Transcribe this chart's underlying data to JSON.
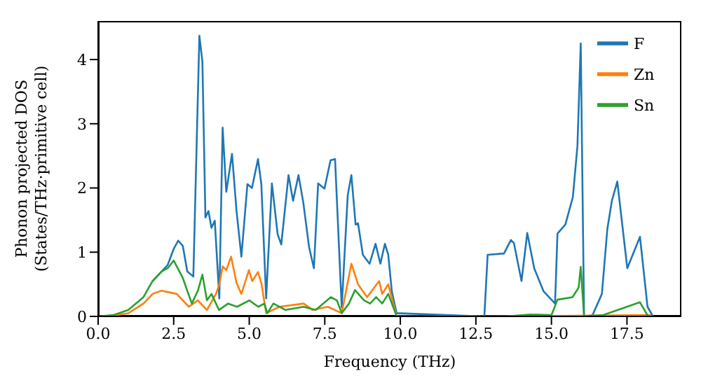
{
  "chart_data": {
    "type": "line",
    "xlabel": "Frequency (THz)",
    "ylabel": "Phonon projected DOS\n(States/THz·primitive cell)",
    "xlim": [
      0,
      19.3
    ],
    "ylim": [
      0,
      4.6
    ],
    "xticks": [
      {
        "value": 0,
        "label": "0.0"
      },
      {
        "value": 2.5,
        "label": "2.5"
      },
      {
        "value": 5,
        "label": "5.0"
      },
      {
        "value": 7.5,
        "label": "7.5"
      },
      {
        "value": 10,
        "label": "10.0"
      },
      {
        "value": 12.5,
        "label": "12.5"
      },
      {
        "value": 15,
        "label": "15.0"
      },
      {
        "value": 17.5,
        "label": "17.5"
      }
    ],
    "yticks": [
      0,
      1,
      2,
      3,
      4
    ],
    "legend": "top right",
    "line_style": "solid",
    "series": [
      {
        "name": "F",
        "color": "#1f77b4",
        "x": [
          1.8,
          2.1,
          2.3,
          2.5,
          2.65,
          2.8,
          2.95,
          3.15,
          3.35,
          3.45,
          3.55,
          3.65,
          3.75,
          3.86,
          4.01,
          4.12,
          4.24,
          4.43,
          4.58,
          4.74,
          4.94,
          5.09,
          5.29,
          5.4,
          5.56,
          5.75,
          5.94,
          6.06,
          6.3,
          6.45,
          6.63,
          6.79,
          6.98,
          7.14,
          7.28,
          7.49,
          7.69,
          7.84,
          8.06,
          8.26,
          8.38,
          8.52,
          8.6,
          8.76,
          8.98,
          9.18,
          9.34,
          9.49,
          9.6,
          9.72,
          9.88,
          12.78,
          12.89,
          13.43,
          13.66,
          13.76,
          14.01,
          14.2,
          14.43,
          14.74,
          15.12,
          15.2,
          15.46,
          15.71,
          15.86,
          15.97,
          16.08,
          16.36,
          16.67,
          16.85,
          17.0,
          17.18,
          17.51,
          17.93,
          18.18,
          18.36
        ],
        "values": [
          0.55,
          0.7,
          0.8,
          1.05,
          1.18,
          1.1,
          0.7,
          0.62,
          4.37,
          3.97,
          1.54,
          1.64,
          1.38,
          1.49,
          0.28,
          2.94,
          1.94,
          2.53,
          1.64,
          0.93,
          2.06,
          2.0,
          2.45,
          2.06,
          0.28,
          2.07,
          1.28,
          1.12,
          2.2,
          1.8,
          2.2,
          1.77,
          1.08,
          0.75,
          2.07,
          1.99,
          2.43,
          2.45,
          0.14,
          1.89,
          2.2,
          1.43,
          1.45,
          0.96,
          0.82,
          1.13,
          0.82,
          1.13,
          0.96,
          0.38,
          0.05,
          0,
          0.96,
          0.98,
          1.19,
          1.14,
          0.55,
          1.3,
          0.75,
          0.39,
          0.2,
          1.29,
          1.43,
          1.86,
          2.65,
          4.25,
          0,
          0.02,
          0.35,
          1.36,
          1.8,
          2.1,
          0.75,
          1.24,
          0.15,
          0
        ]
      },
      {
        "name": "Zn",
        "color": "#ff7f0e",
        "x": [
          0.3,
          1.0,
          1.5,
          1.8,
          2.1,
          2.3,
          2.6,
          3.0,
          3.3,
          3.6,
          3.9,
          4.01,
          4.12,
          4.24,
          4.4,
          4.58,
          4.74,
          4.99,
          5.1,
          5.29,
          5.4,
          5.56,
          6.0,
          6.8,
          7.1,
          7.6,
          8.06,
          8.38,
          8.6,
          8.9,
          9.3,
          9.4,
          9.6,
          9.88,
          13.0,
          18.3
        ],
        "values": [
          0,
          0.05,
          0.2,
          0.35,
          0.4,
          0.38,
          0.35,
          0.15,
          0.25,
          0.1,
          0.35,
          0.5,
          0.78,
          0.72,
          0.93,
          0.52,
          0.35,
          0.72,
          0.55,
          0.69,
          0.52,
          0.05,
          0.15,
          0.2,
          0.1,
          0.15,
          0.05,
          0.82,
          0.5,
          0.3,
          0.55,
          0.35,
          0.5,
          0,
          0,
          0.02
        ]
      },
      {
        "name": "Sn",
        "color": "#2ca02c",
        "x": [
          0,
          0.5,
          1.0,
          1.5,
          1.8,
          2.1,
          2.3,
          2.5,
          2.8,
          3.1,
          3.3,
          3.45,
          3.6,
          3.75,
          4.0,
          4.3,
          4.6,
          5.0,
          5.3,
          5.5,
          5.6,
          5.8,
          6.2,
          6.8,
          7.2,
          7.7,
          7.9,
          8.06,
          8.3,
          8.5,
          8.8,
          9.0,
          9.2,
          9.4,
          9.6,
          9.88,
          13.5,
          14.3,
          15.0,
          15.2,
          15.7,
          15.9,
          15.97,
          16.08,
          16.7,
          17.2,
          17.93,
          18.2
        ],
        "values": [
          0,
          0.02,
          0.1,
          0.3,
          0.55,
          0.7,
          0.75,
          0.87,
          0.6,
          0.2,
          0.4,
          0.65,
          0.25,
          0.35,
          0.1,
          0.2,
          0.15,
          0.25,
          0.15,
          0.2,
          0.05,
          0.2,
          0.1,
          0.15,
          0.1,
          0.3,
          0.25,
          0.05,
          0.2,
          0.41,
          0.25,
          0.2,
          0.3,
          0.2,
          0.35,
          0,
          0,
          0.03,
          0.02,
          0.26,
          0.3,
          0.45,
          0.77,
          0,
          0.02,
          0.1,
          0.22,
          0
        ]
      }
    ]
  }
}
